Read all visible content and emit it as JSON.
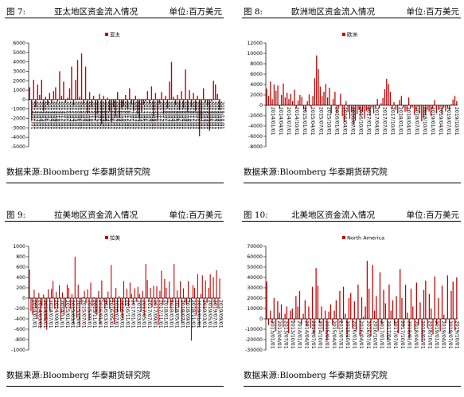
{
  "panels": [
    {
      "figure": "图 7:",
      "title": "亚太地区资金流入情况",
      "unit": "单位:百万美元",
      "source": "数据来源:Bloomberg 华泰期货研究院",
      "chart_data": {
        "type": "bar",
        "series": [
          {
            "name": "亚太",
            "color": "#c00000"
          }
        ],
        "ylim": [
          -5000,
          6000
        ],
        "yticks": [
          -5000,
          -4000,
          -3000,
          -2000,
          -1000,
          0,
          1000,
          2000,
          3000,
          4000,
          5000,
          6000
        ],
        "xticks": [
          "2014/01/01",
          "2014/02/01",
          "2014/03/01",
          "2014/04/01",
          "2014/05/01",
          "2014/06/01",
          "2014/07/01",
          "2014/08/01",
          "2014/09/01",
          "2014/10/01",
          "2014/11/01",
          "2014/12/01",
          "2015/01/01",
          "2015/02/01",
          "2015/03/01",
          "2015/04/01",
          "2015/05/01",
          "2015/06/01",
          "2015/07/01",
          "2015/08/01",
          "2015/09/01",
          "2015/10/01",
          "2015/11/01",
          "2015/12/01",
          "2016/01/01",
          "2016/02/01",
          "2016/03/01",
          "2016/04/01",
          "2016/05/01",
          "2016/06/01",
          "2016/07/01",
          "2016/08/01",
          "2016/09/01",
          "2016/10/01",
          "2016/11/01",
          "2016/12/01",
          "2017/01/01",
          "2017/02/01",
          "2017/03/01",
          "2017/04/01",
          "2017/05/01",
          "2017/06/01",
          "2017/07/01",
          "2017/08/01",
          "2017/09/01",
          "2017/10/01",
          "2017/11/01",
          "2017/12/01",
          "2018/01/01",
          "2018/02/01",
          "2018/03/01",
          "2018/04/01",
          "2018/05/01",
          "2018/06/01",
          "2018/07/01",
          "2018/08/01",
          "2018/09/01",
          "2018/10/01",
          "2018/11/01",
          "2018/12/01",
          "2019/01/01",
          "2019/02/01",
          "2019/03/01",
          "2019/04/01",
          "2019/05/01",
          "2019/06/01",
          "2019/07/01",
          "2019/08/01",
          "2019/09/01",
          "2019/10/01"
        ],
        "values": [
          1300,
          -2200,
          2100,
          -800,
          1600,
          500,
          2100,
          -1200,
          300,
          -600,
          700,
          -400,
          900,
          1300,
          -200,
          3000,
          400,
          1900,
          -300,
          200,
          1200,
          3500,
          -600,
          2100,
          4200,
          300,
          4900,
          -500,
          3500,
          -1500,
          800,
          -800,
          400,
          -2200,
          -1500,
          600,
          -2600,
          400,
          -2200,
          200,
          -1200,
          -2400,
          -800,
          -1800,
          800,
          -1900,
          -900,
          -700,
          500,
          -900,
          1200,
          -500,
          -1200,
          400,
          -1500,
          -2000,
          -1300,
          -500,
          -200,
          900,
          -400,
          1400,
          -1700,
          700,
          -2100,
          -400,
          800,
          -1500,
          400,
          -900,
          1900,
          4000,
          300,
          -600,
          500,
          -1100,
          900,
          -900,
          3200,
          -1300,
          1000,
          -800,
          700,
          -1200,
          400,
          -3900,
          -2100,
          1200,
          -300,
          -600,
          -3300,
          -200,
          2000,
          1600,
          600,
          -1100
        ]
      }
    },
    {
      "figure": "图 8:",
      "title": "欧洲地区资金流入情况",
      "unit": "单位:百万美元",
      "source": "数据来源:Bloomberg 华泰期货研究院",
      "chart_data": {
        "type": "bar",
        "series": [
          {
            "name": "欧洲",
            "color": "#c00000"
          }
        ],
        "ylim": [
          -8000,
          12000
        ],
        "yticks": [
          -8000,
          -6000,
          -4000,
          -2000,
          0,
          2000,
          4000,
          6000,
          8000,
          10000,
          12000
        ],
        "xticks": [
          "2014/01/01",
          "2014/04/01",
          "2014/07/01",
          "2014/10/01",
          "2015/01/01",
          "2015/04/01",
          "2015/07/01",
          "2015/10/01",
          "2016/01/01",
          "2016/04/01",
          "2016/07/01",
          "2016/10/01",
          "2017/01/01",
          "2017/04/01",
          "2017/07/01",
          "2017/10/01",
          "2018/01/01",
          "2018/04/01",
          "2018/07/01",
          "2018/10/01",
          "2019/01/01",
          "2019/04/01",
          "2019/07/01",
          "2019/10/01"
        ],
        "values": [
          3200,
          1800,
          4600,
          1200,
          4000,
          2800,
          3800,
          -600,
          2000,
          4200,
          1500,
          2400,
          1200,
          2200,
          800,
          3000,
          -500,
          900,
          2000,
          1600,
          -800,
          -1200,
          800,
          2100,
          -400,
          1800,
          5200,
          9600,
          7000,
          3600,
          1800,
          2600,
          4100,
          1500,
          3400,
          -1600,
          1200,
          2600,
          -1600,
          -400,
          2200,
          -2100,
          -3200,
          800,
          -1300,
          -2600,
          -1400,
          -3800,
          -3000,
          -1700,
          -900,
          -2000,
          -1200,
          -2600,
          -1100,
          -900,
          -2000,
          -500,
          -1600,
          -400,
          1200,
          -600,
          400,
          1400,
          3100,
          5100,
          4100,
          2600,
          -700,
          600,
          -900,
          -1600,
          1000,
          1800,
          -500,
          -1300,
          -1100,
          1500,
          -600,
          -400,
          -1800,
          -1000,
          -300,
          -1600,
          -3100,
          -2400,
          -1900,
          -900,
          -1200,
          -2000,
          -700,
          1000,
          -1600,
          -900,
          -300,
          -1700,
          -500,
          -1200,
          -400,
          -900,
          200,
          1100,
          1800,
          800
        ]
      }
    },
    {
      "figure": "图 9:",
      "title": "拉美地区资金流入情况",
      "unit": "单位:百万美元",
      "source": "数据来源:Bloomberg 华泰期货研究院",
      "chart_data": {
        "type": "bar",
        "series": [
          {
            "name": "拉美",
            "color": "#c00000"
          }
        ],
        "ylim": [
          -1000,
          1000
        ],
        "yticks": [
          -1000,
          -800,
          -600,
          -400,
          -200,
          0,
          200,
          400,
          600,
          800,
          1000
        ],
        "xticks": [
          "2014/01/01",
          "2014/03/01",
          "2014/05/01",
          "2014/07/01",
          "2014/09/01",
          "2014/11/01",
          "2015/01/01",
          "2015/03/01",
          "2015/05/01",
          "2015/07/01",
          "2015/09/01",
          "2015/11/01",
          "2016/01/01",
          "2016/03/01",
          "2016/05/01",
          "2016/07/01",
          "2016/09/01",
          "2016/11/01",
          "2017/01/01",
          "2017/03/01",
          "2017/05/01",
          "2017/07/01",
          "2017/09/01",
          "2017/11/01",
          "2018/01/01",
          "2018/03/01",
          "2018/05/01",
          "2018/07/01",
          "2018/09/01",
          "2018/11/01",
          "2019/01/01",
          "2019/03/01",
          "2019/05/01",
          "2019/07/01",
          "2019/09/01"
        ],
        "values": [
          550,
          -250,
          -320,
          160,
          -200,
          -400,
          100,
          -580,
          -150,
          70,
          -450,
          -610,
          170,
          -250,
          180,
          330,
          -200,
          120,
          -210,
          250,
          -420,
          110,
          -320,
          -180,
          260,
          200,
          -210,
          80,
          -500,
          800,
          -380,
          260,
          -550,
          -120,
          20,
          140,
          -100,
          170,
          -420,
          300,
          -160,
          20,
          -300,
          -320,
          140,
          -500,
          340,
          -60,
          -200,
          -120,
          130,
          -210,
          640,
          -80,
          -500,
          200,
          -280,
          40,
          -260,
          -380,
          330,
          -150,
          180,
          -160,
          300,
          80,
          -120,
          190,
          -70,
          220,
          80,
          -260,
          140,
          -350,
          660,
          350,
          -60,
          200,
          -170,
          240,
          -130,
          230,
          -520,
          140,
          530,
          -130,
          370,
          200,
          -100,
          320,
          -200,
          -80,
          660,
          -280,
          150,
          -170,
          330,
          -480,
          190,
          -100,
          -130,
          330,
          -80,
          -820,
          250,
          200,
          -330,
          460,
          -560,
          80,
          440,
          -210,
          340,
          -90,
          200,
          460,
          -180,
          400,
          -120,
          540,
          -200,
          380
        ]
      }
    },
    {
      "figure": "图 10:",
      "title": "北美地区资金流入情况",
      "unit": "单位:百万美元",
      "source": "数据来源:Bloomberg 华泰期货研究院",
      "chart_data": {
        "type": "bar",
        "series": [
          {
            "name": "North America",
            "color": "#c00000"
          }
        ],
        "ylim": [
          -30000,
          70000
        ],
        "yticks": [
          -30000,
          -20000,
          -10000,
          0,
          10000,
          20000,
          30000,
          40000,
          50000,
          60000,
          70000
        ],
        "xticks": [
          "2013/01/01",
          "2013/04/01",
          "2013/07/01",
          "2013/10/01",
          "2014/01/01",
          "2014/04/01",
          "2014/07/01",
          "2014/10/01",
          "2015/01/01",
          "2015/04/01",
          "2015/07/01",
          "2015/10/01",
          "2016/01/01",
          "2016/04/01",
          "2016/07/01",
          "2016/10/01",
          "2017/01/01",
          "2017/04/01",
          "2017/07/01",
          "2017/10/01",
          "2018/01/01",
          "2018/04/01",
          "2018/07/01",
          "2018/10/01",
          "2019/01/01",
          "2019/04/01",
          "2019/07/01",
          "2019/10/01"
        ],
        "values": [
          36000,
          -6000,
          8000,
          -4000,
          20000,
          -12000,
          17000,
          6000,
          14000,
          -8000,
          5000,
          12000,
          -14000,
          8000,
          10000,
          -3000,
          22000,
          12000,
          27000,
          -5000,
          5000,
          18000,
          -7000,
          12000,
          -9000,
          31000,
          -15000,
          49000,
          32000,
          -4000,
          12000,
          -12000,
          8000,
          -21000,
          7000,
          14000,
          -6000,
          8000,
          18000,
          -10000,
          27000,
          -4000,
          31000,
          5000,
          -18000,
          20000,
          25000,
          -9000,
          17000,
          -11000,
          33000,
          -16000,
          21000,
          2000,
          12000,
          56000,
          29000,
          -17000,
          52000,
          8000,
          22000,
          -12000,
          45000,
          -5000,
          28000,
          15000,
          -20000,
          33000,
          8000,
          18000,
          -6000,
          22000,
          -14000,
          48000,
          20000,
          -8000,
          33000,
          6000,
          -19000,
          29000,
          12000,
          -11000,
          35000,
          -6000,
          16000,
          -22000,
          28000,
          37000,
          -9000,
          24000,
          10000,
          -15000,
          41000,
          -6000,
          20000,
          -12000,
          32000,
          4000,
          -4000,
          42000,
          -14000,
          27000,
          36000,
          -11000,
          40000
        ]
      }
    }
  ]
}
